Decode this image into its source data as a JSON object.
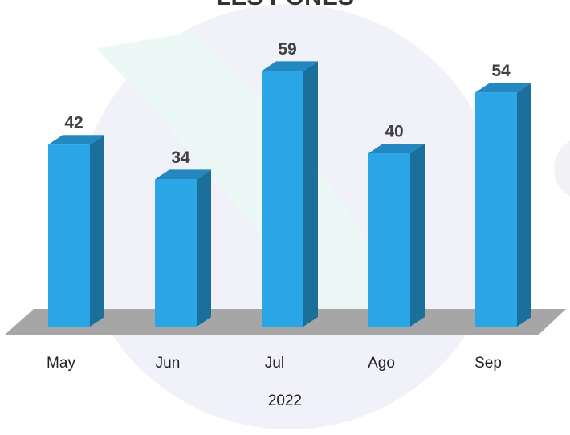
{
  "chart_data": {
    "type": "bar3d",
    "title": "LES PONES",
    "categories": [
      "May",
      "Jun",
      "Jul",
      "Ago",
      "Sep"
    ],
    "values": [
      42,
      34,
      59,
      40,
      54
    ],
    "x_label": "2022",
    "color": "#2aa6e6"
  }
}
